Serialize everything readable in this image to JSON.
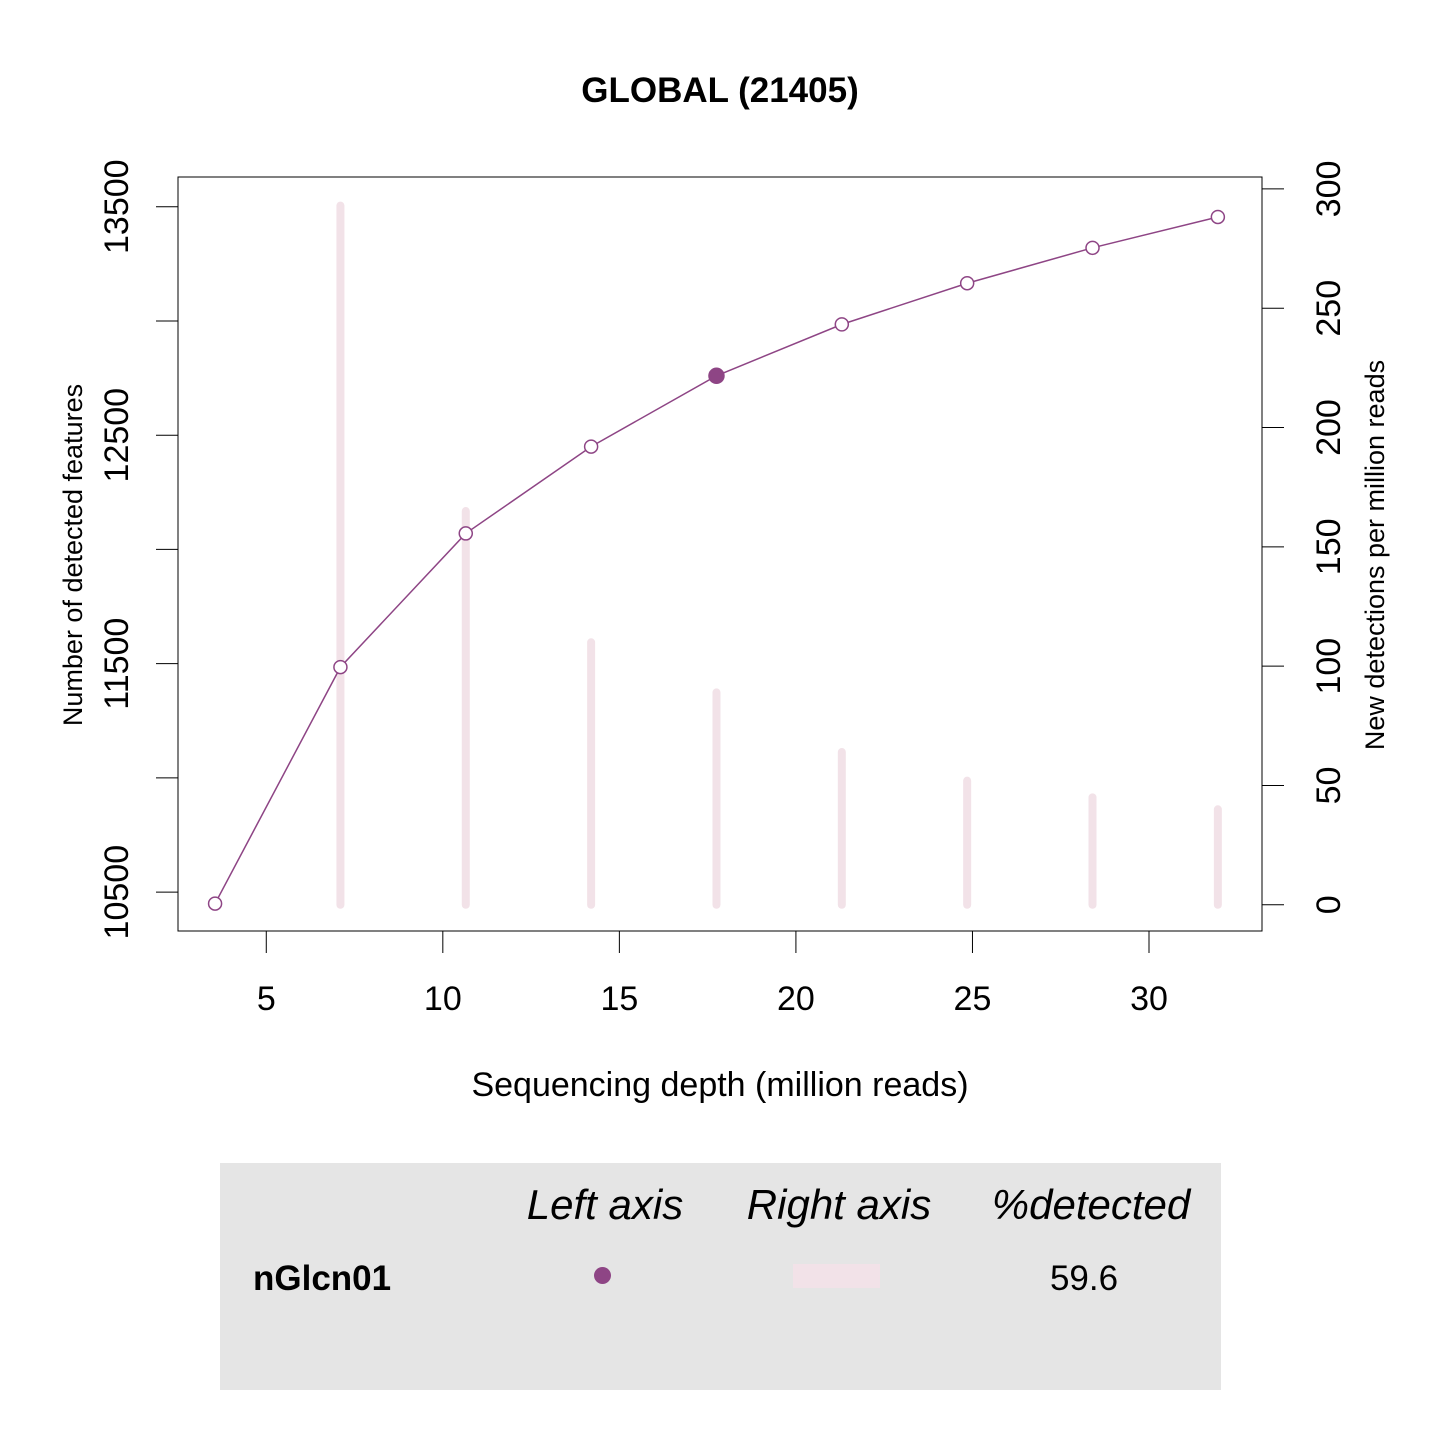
{
  "chart_data": {
    "type": "line",
    "title": "GLOBAL (21405)",
    "xlabel": "Sequencing depth (million reads)",
    "ylabel_left": "Number of detected features",
    "ylabel_right": "New detections per million reads",
    "xlim": [
      2.5,
      33.2
    ],
    "ylim_left": [
      10330,
      13630
    ],
    "ylim_right": [
      -11,
      305
    ],
    "x_ticks": [
      5,
      10,
      15,
      20,
      25,
      30
    ],
    "y_left_ticks": [
      10500,
      11000,
      11500,
      12000,
      12500,
      13000,
      13500
    ],
    "y_left_tick_labels": [
      "10500",
      "",
      "11500",
      "",
      "12500",
      "",
      "13500"
    ],
    "y_right_ticks": [
      0,
      50,
      100,
      150,
      200,
      250,
      300
    ],
    "grid": false,
    "series": [
      {
        "name": "nGlcn01",
        "axis": "left",
        "kind": "line-points",
        "color": "#8e4585",
        "x": [
          3.55,
          7.1,
          10.65,
          14.2,
          17.75,
          21.3,
          24.85,
          28.4,
          31.95
        ],
        "y": [
          10450,
          11485,
          12070,
          12450,
          12760,
          12985,
          13165,
          13320,
          13455
        ],
        "highlight_index": 4
      },
      {
        "name": "nGlcn01",
        "axis": "right",
        "kind": "spikes",
        "color": "#f2e2e8",
        "x": [
          7.1,
          10.65,
          14.2,
          17.75,
          21.3,
          24.85,
          28.4,
          31.95
        ],
        "y": [
          293,
          165,
          110,
          89,
          64,
          52,
          45,
          40
        ]
      }
    ]
  },
  "legend": {
    "headers": {
      "left_axis": "Left axis",
      "right_axis": "Right axis",
      "detected": "%detected"
    },
    "rows": [
      {
        "sample": "nGlcn01",
        "percent_detected": "59.6",
        "point_color": "#8e4585",
        "bar_color": "#f2e2e8"
      }
    ],
    "background": "#e5e5e5"
  }
}
